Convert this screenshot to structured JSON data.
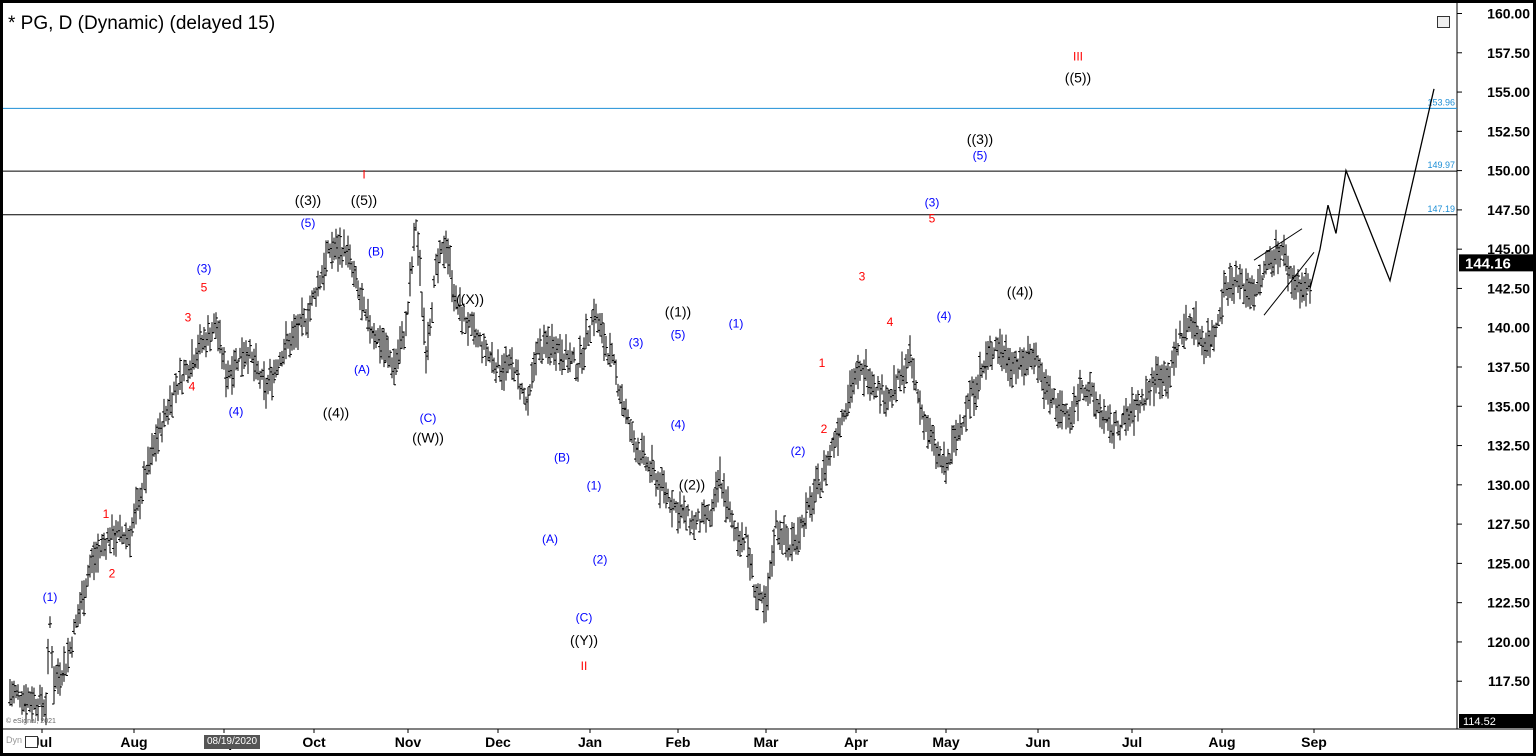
{
  "window": {
    "title": "* PG, D (Dynamic) (delayed 15)",
    "selected_date": "08/19/2020",
    "credit": "© eSignal, 2021",
    "dyn_label": "Dyn"
  },
  "colors": {
    "background": "#ffffff",
    "bars": "#000000",
    "wave_blue": "#0000ff",
    "wave_red": "#ff0000",
    "wave_black": "#000000",
    "level_blue": "#1e8fd6",
    "level_black": "#000000",
    "price_box": "#000000"
  },
  "chart_data": {
    "type": "bar",
    "symbol": "PG",
    "interval": "D",
    "title": "* PG, D (Dynamic) (delayed 15)",
    "y_axis": {
      "side": "right",
      "ylim": [
        115.0,
        160.0
      ],
      "ticks": [
        117.5,
        120.0,
        122.5,
        125.0,
        127.5,
        130.0,
        132.5,
        135.0,
        137.5,
        140.0,
        142.5,
        145.0,
        147.5,
        150.0,
        152.5,
        155.0,
        157.5,
        160.0
      ],
      "tick_labels": [
        "117.50",
        "120.00",
        "122.50",
        "125.00",
        "127.50",
        "130.00",
        "132.50",
        "135.00",
        "137.50",
        "140.00",
        "142.50",
        "145.00",
        "147.50",
        "150.00",
        "152.50",
        "155.00",
        "157.50",
        "160.00"
      ]
    },
    "x_axis": {
      "month_labels": [
        "Jul",
        "Aug",
        "Sep",
        "Oct",
        "Nov",
        "Dec",
        "Jan",
        "Feb",
        "Mar",
        "Apr",
        "May",
        "Jun",
        "Jul",
        "Aug",
        "Sep"
      ],
      "month_days": [
        16,
        62,
        107,
        152,
        199,
        244,
        290,
        334,
        378,
        423,
        468,
        514,
        561,
        606,
        652
      ]
    },
    "last_price": "144.16",
    "low_price_label": "114.52",
    "levels": [
      {
        "value": 153.96,
        "label": "153.96",
        "color": "blue"
      },
      {
        "value": 149.97,
        "label": "149.97",
        "color": "black"
      },
      {
        "value": 147.19,
        "label": "147.19",
        "color": "black"
      }
    ],
    "price_path": [
      [
        0,
        116.8
      ],
      [
        18,
        116.0
      ],
      [
        20,
        121.2
      ],
      [
        22,
        117.5
      ],
      [
        28,
        118.6
      ],
      [
        40,
        124.8
      ],
      [
        50,
        126.8
      ],
      [
        60,
        126.8
      ],
      [
        66,
        129.7
      ],
      [
        73,
        132.8
      ],
      [
        82,
        136.0
      ],
      [
        93,
        138.5
      ],
      [
        103,
        140.2
      ],
      [
        108,
        137.0
      ],
      [
        118,
        138.7
      ],
      [
        128,
        136.0
      ],
      [
        136,
        138.5
      ],
      [
        148,
        140.5
      ],
      [
        160,
        145.0
      ],
      [
        168,
        145.0
      ],
      [
        178,
        140.5
      ],
      [
        186,
        139.0
      ],
      [
        192,
        137.5
      ],
      [
        198,
        140.0
      ],
      [
        203,
        146.7
      ],
      [
        208,
        138.5
      ],
      [
        213,
        143.5
      ],
      [
        218,
        145.5
      ],
      [
        223,
        141.5
      ],
      [
        232,
        139.5
      ],
      [
        244,
        137.5
      ],
      [
        252,
        137.5
      ],
      [
        259,
        134.8
      ],
      [
        263,
        138.5
      ],
      [
        272,
        139.0
      ],
      [
        284,
        137.5
      ],
      [
        292,
        141.0
      ],
      [
        302,
        137.5
      ],
      [
        311,
        133.0
      ],
      [
        320,
        131.0
      ],
      [
        333,
        128.5
      ],
      [
        342,
        127.5
      ],
      [
        351,
        128.0
      ],
      [
        355,
        130.5
      ],
      [
        362,
        127.0
      ],
      [
        368,
        126.5
      ],
      [
        373,
        123.0
      ],
      [
        378,
        122.0
      ],
      [
        383,
        127.5
      ],
      [
        390,
        126.0
      ],
      [
        398,
        128.0
      ],
      [
        406,
        130.5
      ],
      [
        414,
        133.5
      ],
      [
        421,
        136.5
      ],
      [
        428,
        137.3
      ],
      [
        435,
        136.0
      ],
      [
        440,
        135.5
      ],
      [
        446,
        137.0
      ],
      [
        450,
        138.0
      ],
      [
        455,
        135.0
      ],
      [
        463,
        132.0
      ],
      [
        468,
        131.0
      ],
      [
        473,
        133.0
      ],
      [
        480,
        135.5
      ],
      [
        487,
        137.5
      ],
      [
        493,
        139.0
      ],
      [
        499,
        138.0
      ],
      [
        505,
        137.5
      ],
      [
        512,
        138.5
      ],
      [
        518,
        136.0
      ],
      [
        524,
        135.0
      ],
      [
        530,
        134.0
      ],
      [
        536,
        136.5
      ],
      [
        544,
        135.0
      ],
      [
        550,
        133.5
      ],
      [
        557,
        134.0
      ],
      [
        564,
        135.0
      ],
      [
        569,
        136.0
      ],
      [
        574,
        137.0
      ],
      [
        580,
        137.0
      ],
      [
        585,
        139.5
      ],
      [
        591,
        140.5
      ],
      [
        597,
        139.0
      ],
      [
        602,
        139.5
      ],
      [
        607,
        142.5
      ],
      [
        613,
        143.0
      ],
      [
        618,
        142.5
      ],
      [
        624,
        142.5
      ],
      [
        630,
        144.5
      ],
      [
        636,
        145.0
      ],
      [
        641,
        143.0
      ],
      [
        647,
        142.5
      ],
      [
        650,
        142.5
      ]
    ],
    "projection": [
      [
        650,
        142.5
      ],
      [
        655,
        145.0
      ],
      [
        659,
        147.8
      ],
      [
        663,
        146.0
      ],
      [
        668,
        150.0
      ],
      [
        690,
        143.0
      ],
      [
        712,
        155.2
      ]
    ],
    "triangle": [
      {
        "from": [
          622,
          144.3
        ],
        "to": [
          646,
          146.3
        ]
      },
      {
        "from": [
          627,
          140.8
        ],
        "to": [
          652,
          144.8
        ]
      }
    ],
    "wave_labels": [
      {
        "text": "(1)",
        "day": 20,
        "price": 122.6,
        "color": "blue"
      },
      {
        "text": "1",
        "day": 48,
        "price": 127.9,
        "color": "red"
      },
      {
        "text": "2",
        "day": 51,
        "price": 124.1,
        "color": "red"
      },
      {
        "text": "3",
        "day": 89,
        "price": 140.4,
        "color": "red"
      },
      {
        "text": "4",
        "day": 91,
        "price": 136.0,
        "color": "red"
      },
      {
        "text": "(3)",
        "day": 97,
        "price": 143.5,
        "color": "blue"
      },
      {
        "text": "5",
        "day": 97,
        "price": 142.3,
        "color": "red"
      },
      {
        "text": "(4)",
        "day": 113,
        "price": 134.4,
        "color": "blue"
      },
      {
        "text": "((3))",
        "day": 149,
        "price": 147.8,
        "color": "black"
      },
      {
        "text": "(5)",
        "day": 149,
        "price": 146.4,
        "color": "blue"
      },
      {
        "text": "((4))",
        "day": 163,
        "price": 134.3,
        "color": "black"
      },
      {
        "text": "I",
        "day": 177,
        "price": 149.5,
        "color": "red"
      },
      {
        "text": "((5))",
        "day": 177,
        "price": 147.8,
        "color": "black"
      },
      {
        "text": "(B)",
        "day": 183,
        "price": 144.6,
        "color": "blue"
      },
      {
        "text": "(A)",
        "day": 176,
        "price": 137.1,
        "color": "blue"
      },
      {
        "text": "((X))",
        "day": 230,
        "price": 141.5,
        "color": "black"
      },
      {
        "text": "(C)",
        "day": 209,
        "price": 134.0,
        "color": "blue"
      },
      {
        "text": "((W))",
        "day": 209,
        "price": 132.7,
        "color": "black"
      },
      {
        "text": "(B)",
        "day": 276,
        "price": 131.5,
        "color": "blue"
      },
      {
        "text": "(A)",
        "day": 270,
        "price": 126.3,
        "color": "blue"
      },
      {
        "text": "(1)",
        "day": 292,
        "price": 129.7,
        "color": "blue"
      },
      {
        "text": "(2)",
        "day": 295,
        "price": 125.0,
        "color": "blue"
      },
      {
        "text": "(C)",
        "day": 287,
        "price": 121.3,
        "color": "blue"
      },
      {
        "text": "((Y))",
        "day": 287,
        "price": 119.8,
        "color": "black"
      },
      {
        "text": "II",
        "day": 287,
        "price": 118.2,
        "color": "red"
      },
      {
        "text": "(3)",
        "day": 313,
        "price": 138.8,
        "color": "blue"
      },
      {
        "text": "((1))",
        "day": 334,
        "price": 140.7,
        "color": "black"
      },
      {
        "text": "(5)",
        "day": 334,
        "price": 139.3,
        "color": "blue"
      },
      {
        "text": "(4)",
        "day": 334,
        "price": 133.6,
        "color": "blue"
      },
      {
        "text": "((2))",
        "day": 341,
        "price": 129.7,
        "color": "black"
      },
      {
        "text": "(1)",
        "day": 363,
        "price": 140.0,
        "color": "blue"
      },
      {
        "text": "1",
        "day": 406,
        "price": 137.5,
        "color": "red"
      },
      {
        "text": "2",
        "day": 407,
        "price": 133.3,
        "color": "red"
      },
      {
        "text": "(2)",
        "day": 394,
        "price": 131.9,
        "color": "blue"
      },
      {
        "text": "3",
        "day": 426,
        "price": 143.0,
        "color": "red"
      },
      {
        "text": "4",
        "day": 440,
        "price": 140.1,
        "color": "red"
      },
      {
        "text": "(3)",
        "day": 461,
        "price": 147.7,
        "color": "blue"
      },
      {
        "text": "5",
        "day": 461,
        "price": 146.7,
        "color": "red"
      },
      {
        "text": "(4)",
        "day": 467,
        "price": 140.5,
        "color": "blue"
      },
      {
        "text": "((3))",
        "day": 485,
        "price": 151.7,
        "color": "black"
      },
      {
        "text": "(5)",
        "day": 485,
        "price": 150.7,
        "color": "blue"
      },
      {
        "text": "((4))",
        "day": 505,
        "price": 142.0,
        "color": "black"
      },
      {
        "text": "III",
        "day": 534,
        "price": 157.0,
        "color": "red"
      },
      {
        "text": "((5))",
        "day": 534,
        "price": 155.6,
        "color": "black"
      }
    ]
  }
}
